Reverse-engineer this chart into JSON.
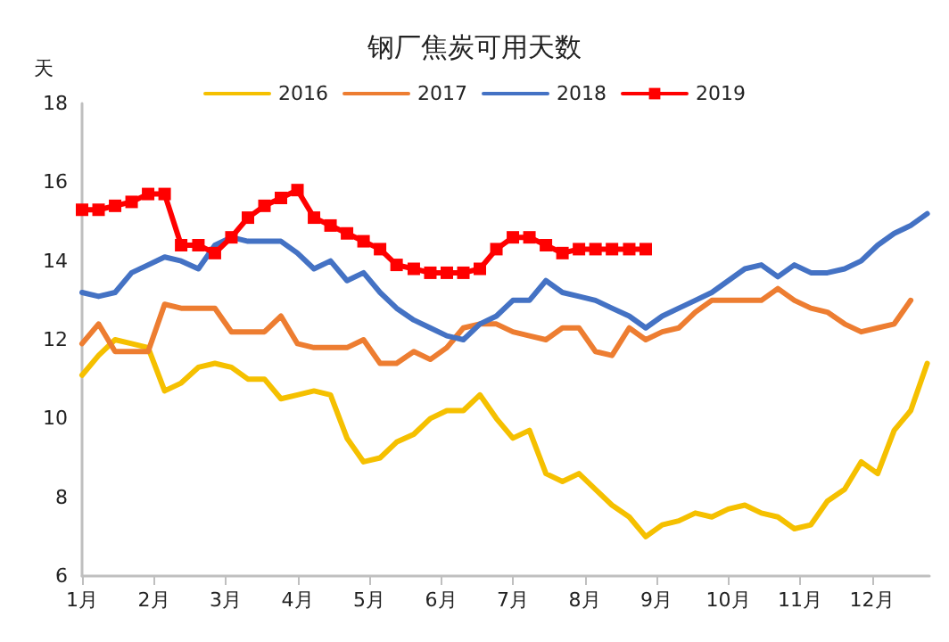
{
  "chart_data": {
    "type": "line",
    "title": "钢厂焦炭可用天数",
    "ylabel": "天",
    "x": [
      1.0,
      1.23,
      1.46,
      1.69,
      1.92,
      2.15,
      2.38,
      2.62,
      2.85,
      3.08,
      3.31,
      3.54,
      3.77,
      4.0,
      4.23,
      4.46,
      4.69,
      4.92,
      5.15,
      5.38,
      5.62,
      5.85,
      6.08,
      6.31,
      6.54,
      6.77,
      7.0,
      7.23,
      7.46,
      7.69,
      7.92,
      8.15,
      8.38,
      8.62,
      8.85,
      9.08,
      9.31,
      9.54,
      9.77,
      10.0,
      10.23,
      10.46,
      10.69,
      10.92,
      11.15,
      11.38,
      11.62,
      11.85,
      12.08,
      12.31,
      12.54,
      12.77
    ],
    "series": [
      {
        "name": "2016",
        "color": "#f5c000",
        "marker": "none",
        "values": [
          11.1,
          11.6,
          12.0,
          11.9,
          11.8,
          10.7,
          10.9,
          11.3,
          11.4,
          11.3,
          11.0,
          11.0,
          10.5,
          10.6,
          10.7,
          10.6,
          9.5,
          8.9,
          9.0,
          9.4,
          9.6,
          10.0,
          10.2,
          10.2,
          10.6,
          10.0,
          9.5,
          9.7,
          8.6,
          8.4,
          8.6,
          8.2,
          7.8,
          7.5,
          7.0,
          7.3,
          7.4,
          7.6,
          7.5,
          7.7,
          7.8,
          7.6,
          7.5,
          7.2,
          7.3,
          7.9,
          8.2,
          8.9,
          8.6,
          9.7,
          10.2,
          11.4
        ]
      },
      {
        "name": "2017",
        "color": "#ed7d31",
        "marker": "none",
        "values": [
          11.9,
          12.4,
          11.7,
          11.7,
          11.7,
          12.9,
          12.8,
          12.8,
          12.8,
          12.2,
          12.2,
          12.2,
          12.6,
          11.9,
          11.8,
          11.8,
          11.8,
          12.0,
          11.4,
          11.4,
          11.7,
          11.5,
          11.8,
          12.3,
          12.4,
          12.4,
          12.2,
          12.1,
          12.0,
          12.3,
          12.3,
          11.7,
          11.6,
          12.3,
          12.0,
          12.2,
          12.3,
          12.7,
          13.0,
          13.0,
          13.0,
          13.0,
          13.3,
          13.0,
          12.8,
          12.7,
          12.4,
          12.2,
          12.3,
          12.4,
          13.0,
          null
        ]
      },
      {
        "name": "2018",
        "color": "#4472c4",
        "marker": "none",
        "values": [
          13.2,
          13.1,
          13.2,
          13.7,
          13.9,
          14.1,
          14.0,
          13.8,
          14.4,
          14.6,
          14.5,
          14.5,
          14.5,
          14.2,
          13.8,
          14.0,
          13.5,
          13.7,
          13.2,
          12.8,
          12.5,
          12.3,
          12.1,
          12.0,
          12.4,
          12.6,
          13.0,
          13.0,
          13.5,
          13.2,
          13.1,
          13.0,
          12.8,
          12.6,
          12.3,
          12.6,
          12.8,
          13.0,
          13.2,
          13.5,
          13.8,
          13.9,
          13.6,
          13.9,
          13.7,
          13.7,
          13.8,
          14.0,
          14.4,
          14.7,
          14.9,
          15.2
        ]
      },
      {
        "name": "2019",
        "color": "#ff0000",
        "marker": "square",
        "values": [
          15.3,
          15.3,
          15.4,
          15.5,
          15.7,
          15.7,
          14.4,
          14.4,
          14.2,
          14.6,
          15.1,
          15.4,
          15.6,
          15.8,
          15.1,
          14.9,
          14.7,
          14.5,
          14.3,
          13.9,
          13.8,
          13.7,
          13.7,
          13.7,
          13.8,
          14.3,
          14.6,
          14.6,
          14.4,
          14.2,
          14.3,
          14.3,
          14.3,
          14.3,
          14.3,
          null,
          null,
          null,
          null,
          null,
          null,
          null,
          null,
          null,
          null,
          null,
          null,
          null,
          null,
          null,
          null,
          null
        ]
      }
    ],
    "xlim": [
      1,
      12.8
    ],
    "xticks": [
      {
        "value": 1,
        "label": "1月"
      },
      {
        "value": 2,
        "label": "2月"
      },
      {
        "value": 3,
        "label": "3月"
      },
      {
        "value": 4,
        "label": "4月"
      },
      {
        "value": 5,
        "label": "5月"
      },
      {
        "value": 6,
        "label": "6月"
      },
      {
        "value": 7,
        "label": "7月"
      },
      {
        "value": 8,
        "label": "8月"
      },
      {
        "value": 9,
        "label": "9月"
      },
      {
        "value": 10,
        "label": "10月"
      },
      {
        "value": 11,
        "label": "11月"
      },
      {
        "value": 12,
        "label": "12月"
      }
    ],
    "ylim": [
      6,
      18
    ],
    "yticks": [
      6,
      8,
      10,
      12,
      14,
      16,
      18
    ],
    "grid": false,
    "legend": "top"
  }
}
